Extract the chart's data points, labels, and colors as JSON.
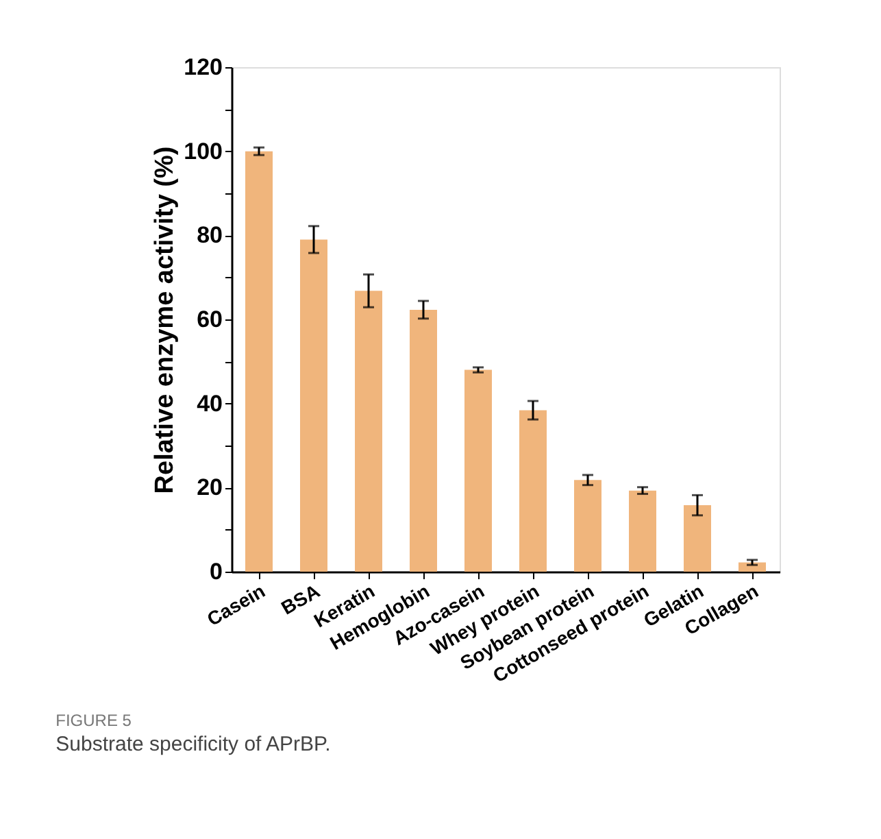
{
  "chart_data": {
    "type": "bar",
    "ylabel": "Relative enzyme activity (%)",
    "categories": [
      "Casein",
      "BSA",
      "Keratin",
      "Hemoglobin",
      "Azo-casein",
      "Whey protein",
      "Soybean protein",
      "Cottonseed protein",
      "Gelatin",
      "Collagen"
    ],
    "values": [
      100,
      79,
      66.8,
      62.3,
      48,
      38.4,
      21.8,
      19.3,
      15.8,
      2.2
    ],
    "errors": [
      0.9,
      3.2,
      3.9,
      2.1,
      0.6,
      2.2,
      1.2,
      0.8,
      2.4,
      0.6
    ],
    "color": "#f0b57c",
    "ylim": [
      0,
      120
    ],
    "yticks": [
      0,
      {
        "value": 10,
        "label": null
      },
      20,
      {
        "value": 30,
        "label": null
      },
      40,
      {
        "value": 50,
        "label": null
      },
      60,
      {
        "value": 70,
        "label": null
      },
      80,
      {
        "value": 90,
        "label": null
      },
      100,
      {
        "value": 110,
        "label": null
      },
      120
    ],
    "grid": false,
    "annotations": [
      "FIGURE 5",
      "Substrate specificity of APrBP."
    ]
  }
}
